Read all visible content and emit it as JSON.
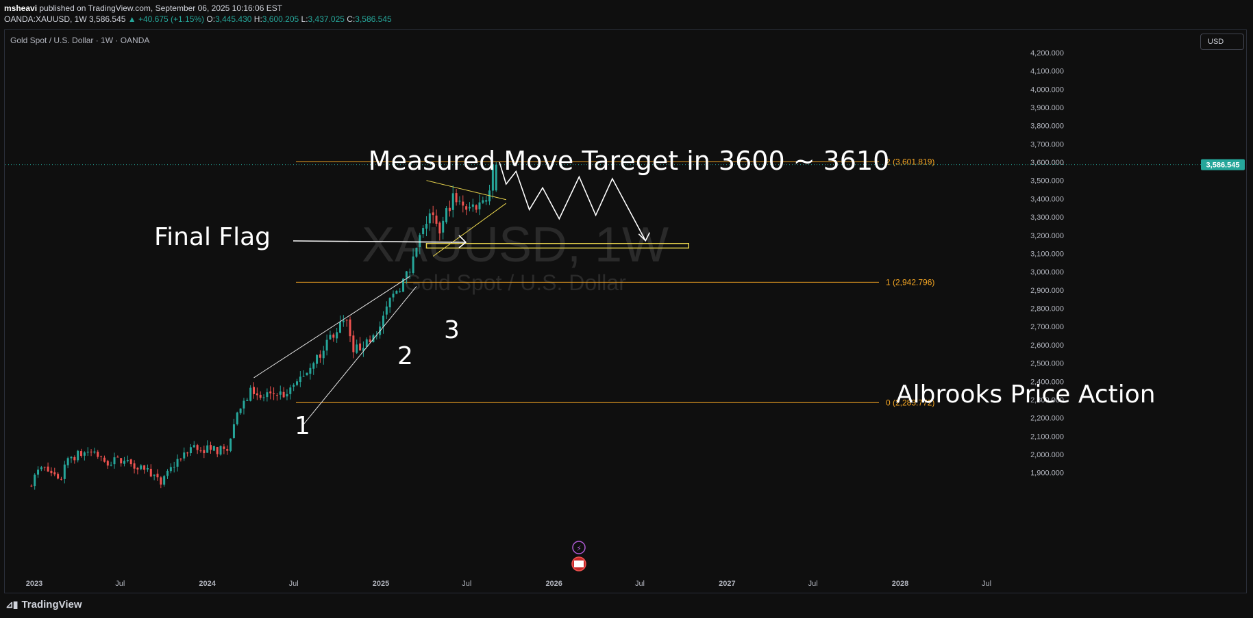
{
  "header": {
    "author": "msheavi",
    "published_text": "published on TradingView.com, September 06, 2025 10:16:06 EST",
    "symbol_line": "OANDA:XAUUSD, 1W",
    "last_price": "3,586.545",
    "change": "▲ +40.675 (+1.15%)",
    "o_label": "O:",
    "o_value": "3,445.430",
    "h_label": "H:",
    "h_value": "3,600.205",
    "l_label": "L:",
    "l_value": "3,437.025",
    "c_label": "C:",
    "c_value": "3,586.545"
  },
  "chart_title": "Gold Spot / U.S. Dollar · 1W · OANDA",
  "currency_button": "USD",
  "footer": {
    "brand": "TradingView",
    "logo_icon": "tradingview-logo-icon"
  },
  "watermark": {
    "symbol": "XAUUSD, 1W",
    "name": "Gold Spot / U.S. Dollar"
  },
  "annotations": {
    "target_text": "Measured Move Tareget in 3600 ~ 3610",
    "final_flag": "Final Flag",
    "albrooks": "Albrooks Price Action",
    "wave_labels": [
      "1",
      "2",
      "3"
    ]
  },
  "fib_levels": [
    {
      "label": "2 (3,601.819)",
      "value": 3601.819
    },
    {
      "label": "1 (2,942.796)",
      "value": 2942.796
    },
    {
      "label": "0 (2,283.772)",
      "value": 2283.772
    }
  ],
  "price_badge": "3,586.545",
  "colors": {
    "up": "#26a69a",
    "down": "#ef5350",
    "fib": "#f5a623",
    "bg": "#0f0f0f",
    "flag": "#e8d44d"
  },
  "chart_data": {
    "type": "candlestick",
    "title": "Gold Spot / U.S. Dollar · 1W · OANDA",
    "x_ticks": [
      "2023",
      "Jul",
      "2024",
      "Jul",
      "2025",
      "Jul",
      "2026",
      "Jul",
      "2027",
      "Jul",
      "2028",
      "Jul"
    ],
    "y_ticks": [
      "4,200.000",
      "4,100.000",
      "4,000.000",
      "3,900.000",
      "3,800.000",
      "3,700.000",
      "3,600.000",
      "3,500.000",
      "3,400.000",
      "3,300.000",
      "3,200.000",
      "3,100.000",
      "3,000.000",
      "2,900.000",
      "2,800.000",
      "2,700.000",
      "2,600.000",
      "2,500.000",
      "2,400.000",
      "2,300.000",
      "2,200.000",
      "2,100.000",
      "2,000.000",
      "1,900.000"
    ],
    "ylim": [
      1820,
      4230
    ],
    "anchor_closes": [
      [
        "2022-12-26",
        1825
      ],
      [
        "2023-01-23",
        1930
      ],
      [
        "2023-03-06",
        1865
      ],
      [
        "2023-03-20",
        1980
      ],
      [
        "2023-05-01",
        2015
      ],
      [
        "2023-06-05",
        1960
      ],
      [
        "2023-07-17",
        1965
      ],
      [
        "2023-09-04",
        1925
      ],
      [
        "2023-10-02",
        1835
      ],
      [
        "2023-11-06",
        1975
      ],
      [
        "2023-12-04",
        2040
      ],
      [
        "2024-01-15",
        2025
      ],
      [
        "2024-02-19",
        2020
      ],
      [
        "2024-03-04",
        2165
      ],
      [
        "2024-04-08",
        2365
      ],
      [
        "2024-04-29",
        2310
      ],
      [
        "2024-05-20",
        2335
      ],
      [
        "2024-06-24",
        2330
      ],
      [
        "2024-07-15",
        2400
      ],
      [
        "2024-08-19",
        2500
      ],
      [
        "2024-09-23",
        2655
      ],
      [
        "2024-10-28",
        2735
      ],
      [
        "2024-11-11",
        2560
      ],
      [
        "2024-12-09",
        2630
      ],
      [
        "2025-01-06",
        2700
      ],
      [
        "2025-02-03",
        2880
      ],
      [
        "2025-03-10",
        3000
      ],
      [
        "2025-04-07",
        3240
      ],
      [
        "2025-04-21",
        3320
      ],
      [
        "2025-05-12",
        3210
      ],
      [
        "2025-06-09",
        3430
      ],
      [
        "2025-07-07",
        3340
      ],
      [
        "2025-08-04",
        3380
      ],
      [
        "2025-08-25",
        3445
      ],
      [
        "2025-09-01",
        3586.545
      ]
    ],
    "projection": [
      [
        "2025-09-08",
        3600
      ],
      [
        "2025-09-22",
        3480
      ],
      [
        "2025-10-13",
        3550
      ],
      [
        "2025-11-10",
        3340
      ],
      [
        "2025-12-08",
        3460
      ],
      [
        "2026-01-12",
        3290
      ],
      [
        "2026-02-23",
        3520
      ],
      [
        "2026-03-30",
        3310
      ],
      [
        "2026-05-04",
        3510
      ],
      [
        "2026-07-13",
        3170
      ]
    ],
    "fib_levels": [
      3601.819,
      2942.796,
      2283.772
    ]
  }
}
